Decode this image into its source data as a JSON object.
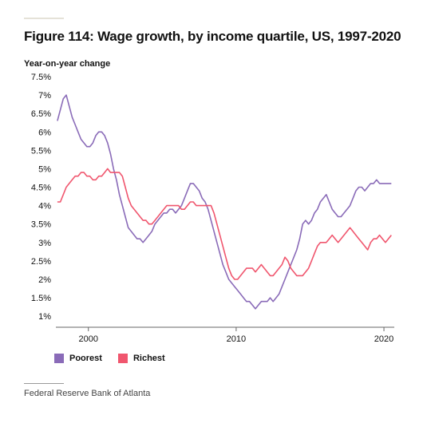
{
  "title": "Figure 114: Wage growth, by income quartile, US, 1997-2020",
  "source": "Federal Reserve Bank of Atlanta",
  "colors": {
    "poorest": "#8a6bb8",
    "richest": "#f0566e",
    "axis": "#666666",
    "text": "#111111"
  },
  "chart_data": {
    "type": "line",
    "title": "Figure 114: Wage growth, by income quartile, US, 1997-2020",
    "xlabel": "",
    "ylabel": "Year-on-year change",
    "xlim": [
      1997.8,
      2020.7
    ],
    "ylim": [
      0.7,
      7.5
    ],
    "x_ticks": [
      2000,
      2010,
      2020
    ],
    "x_tick_labels": [
      "2000",
      "2010",
      "2020"
    ],
    "y_ticks": [
      1,
      1.5,
      2,
      2.5,
      3,
      3.5,
      4,
      4.5,
      5,
      5.5,
      6,
      6.5,
      7,
      7.5
    ],
    "y_tick_labels": [
      "1%",
      "1.5%",
      "2%",
      "2.5%",
      "3%",
      "3.5%",
      "4%",
      "4.5%",
      "5%",
      "5.5%",
      "6%",
      "6.5%",
      "7%",
      "7.5%"
    ],
    "grid": false,
    "legend_position": "bottom-left",
    "series": [
      {
        "name": "Poorest",
        "color": "#8a6bb8",
        "x": [
          1997.9,
          1998.1,
          1998.3,
          1998.5,
          1998.7,
          1998.9,
          1999.1,
          1999.3,
          1999.5,
          1999.7,
          1999.9,
          2000.1,
          2000.3,
          2000.5,
          2000.7,
          2000.9,
          2001.1,
          2001.3,
          2001.5,
          2001.7,
          2001.9,
          2002.1,
          2002.3,
          2002.5,
          2002.7,
          2002.9,
          2003.1,
          2003.3,
          2003.5,
          2003.7,
          2003.9,
          2004.1,
          2004.3,
          2004.5,
          2004.7,
          2004.9,
          2005.1,
          2005.3,
          2005.5,
          2005.7,
          2005.9,
          2006.1,
          2006.3,
          2006.5,
          2006.7,
          2006.9,
          2007.1,
          2007.3,
          2007.5,
          2007.7,
          2007.9,
          2008.1,
          2008.3,
          2008.5,
          2008.7,
          2008.9,
          2009.1,
          2009.3,
          2009.5,
          2009.7,
          2009.9,
          2010.1,
          2010.3,
          2010.5,
          2010.7,
          2010.9,
          2011.1,
          2011.3,
          2011.5,
          2011.7,
          2011.9,
          2012.1,
          2012.3,
          2012.5,
          2012.7,
          2012.9,
          2013.1,
          2013.3,
          2013.5,
          2013.7,
          2013.9,
          2014.1,
          2014.3,
          2014.5,
          2014.7,
          2014.9,
          2015.1,
          2015.3,
          2015.5,
          2015.7,
          2015.9,
          2016.1,
          2016.3,
          2016.5,
          2016.7,
          2016.9,
          2017.1,
          2017.3,
          2017.5,
          2017.7,
          2017.9,
          2018.1,
          2018.3,
          2018.5,
          2018.7,
          2018.9,
          2019.1,
          2019.3,
          2019.5,
          2019.7,
          2019.9,
          2020.1,
          2020.3,
          2020.5
        ],
        "values": [
          6.3,
          6.6,
          6.9,
          7.0,
          6.7,
          6.4,
          6.2,
          6.0,
          5.8,
          5.7,
          5.6,
          5.6,
          5.7,
          5.9,
          6.0,
          6.0,
          5.9,
          5.7,
          5.4,
          5.0,
          4.7,
          4.3,
          4.0,
          3.7,
          3.4,
          3.3,
          3.2,
          3.1,
          3.1,
          3.0,
          3.1,
          3.2,
          3.3,
          3.5,
          3.6,
          3.7,
          3.8,
          3.8,
          3.9,
          3.9,
          3.8,
          3.9,
          4.0,
          4.2,
          4.4,
          4.6,
          4.6,
          4.5,
          4.4,
          4.2,
          4.1,
          3.9,
          3.6,
          3.3,
          3.0,
          2.7,
          2.4,
          2.2,
          2.0,
          1.9,
          1.8,
          1.7,
          1.6,
          1.5,
          1.4,
          1.4,
          1.3,
          1.2,
          1.3,
          1.4,
          1.4,
          1.4,
          1.5,
          1.4,
          1.5,
          1.6,
          1.8,
          2.0,
          2.2,
          2.4,
          2.6,
          2.8,
          3.1,
          3.5,
          3.6,
          3.5,
          3.6,
          3.8,
          3.9,
          4.1,
          4.2,
          4.3,
          4.1,
          3.9,
          3.8,
          3.7,
          3.7,
          3.8,
          3.9,
          4.0,
          4.2,
          4.4,
          4.5,
          4.5,
          4.4,
          4.5,
          4.6,
          4.6,
          4.7,
          4.6,
          4.6,
          4.6,
          4.6,
          4.6
        ]
      },
      {
        "name": "Richest",
        "color": "#f0566e",
        "x": [
          1997.9,
          1998.1,
          1998.3,
          1998.5,
          1998.7,
          1998.9,
          1999.1,
          1999.3,
          1999.5,
          1999.7,
          1999.9,
          2000.1,
          2000.3,
          2000.5,
          2000.7,
          2000.9,
          2001.1,
          2001.3,
          2001.5,
          2001.7,
          2001.9,
          2002.1,
          2002.3,
          2002.5,
          2002.7,
          2002.9,
          2003.1,
          2003.3,
          2003.5,
          2003.7,
          2003.9,
          2004.1,
          2004.3,
          2004.5,
          2004.7,
          2004.9,
          2005.1,
          2005.3,
          2005.5,
          2005.7,
          2005.9,
          2006.1,
          2006.3,
          2006.5,
          2006.7,
          2006.9,
          2007.1,
          2007.3,
          2007.5,
          2007.7,
          2007.9,
          2008.1,
          2008.3,
          2008.5,
          2008.7,
          2008.9,
          2009.1,
          2009.3,
          2009.5,
          2009.7,
          2009.9,
          2010.1,
          2010.3,
          2010.5,
          2010.7,
          2010.9,
          2011.1,
          2011.3,
          2011.5,
          2011.7,
          2011.9,
          2012.1,
          2012.3,
          2012.5,
          2012.7,
          2012.9,
          2013.1,
          2013.3,
          2013.5,
          2013.7,
          2013.9,
          2014.1,
          2014.3,
          2014.5,
          2014.7,
          2014.9,
          2015.1,
          2015.3,
          2015.5,
          2015.7,
          2015.9,
          2016.1,
          2016.3,
          2016.5,
          2016.7,
          2016.9,
          2017.1,
          2017.3,
          2017.5,
          2017.7,
          2017.9,
          2018.1,
          2018.3,
          2018.5,
          2018.7,
          2018.9,
          2019.1,
          2019.3,
          2019.5,
          2019.7,
          2019.9,
          2020.1,
          2020.3,
          2020.5
        ],
        "values": [
          4.1,
          4.1,
          4.3,
          4.5,
          4.6,
          4.7,
          4.8,
          4.8,
          4.9,
          4.9,
          4.8,
          4.8,
          4.7,
          4.7,
          4.8,
          4.8,
          4.9,
          5.0,
          4.9,
          4.9,
          4.9,
          4.9,
          4.8,
          4.5,
          4.2,
          4.0,
          3.9,
          3.8,
          3.7,
          3.6,
          3.6,
          3.5,
          3.5,
          3.6,
          3.7,
          3.8,
          3.9,
          4.0,
          4.0,
          4.0,
          4.0,
          4.0,
          3.9,
          3.9,
          4.0,
          4.1,
          4.1,
          4.0,
          4.0,
          4.0,
          4.0,
          4.0,
          4.0,
          3.8,
          3.5,
          3.2,
          2.9,
          2.6,
          2.3,
          2.1,
          2.0,
          2.0,
          2.1,
          2.2,
          2.3,
          2.3,
          2.3,
          2.2,
          2.3,
          2.4,
          2.3,
          2.2,
          2.1,
          2.1,
          2.2,
          2.3,
          2.4,
          2.6,
          2.5,
          2.3,
          2.2,
          2.1,
          2.1,
          2.1,
          2.2,
          2.3,
          2.5,
          2.7,
          2.9,
          3.0,
          3.0,
          3.0,
          3.1,
          3.2,
          3.1,
          3.0,
          3.1,
          3.2,
          3.3,
          3.4,
          3.3,
          3.2,
          3.1,
          3.0,
          2.9,
          2.8,
          3.0,
          3.1,
          3.1,
          3.2,
          3.1,
          3.0,
          3.1,
          3.2
        ]
      }
    ]
  }
}
